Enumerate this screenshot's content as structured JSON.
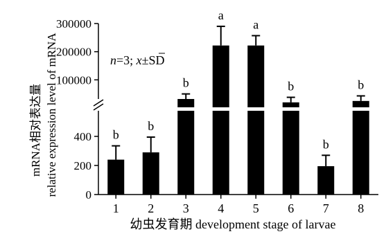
{
  "chart_data": {
    "type": "bar",
    "categories": [
      "1",
      "2",
      "3",
      "4",
      "5",
      "6",
      "7",
      "8"
    ],
    "values": [
      240,
      290,
      32000,
      222000,
      222000,
      20000,
      195,
      25000
    ],
    "errors": [
      95,
      105,
      18000,
      68000,
      35000,
      18000,
      75,
      18000
    ],
    "significance": [
      "b",
      "b",
      "b",
      "a",
      "a",
      "b",
      "b",
      "b"
    ],
    "xlabel": "幼虫发育期 development stage of  larvae",
    "ylabel_line1": "mRNA相对表达量",
    "ylabel_line2": "relative expression level of mRNA",
    "annotation": "n=3; x̄±SD",
    "annotation_n": "n",
    "annotation_rest": "=3; ",
    "annotation_x": "x",
    "annotation_sd": "±SD",
    "axis_break": true,
    "ylim_lower": [
      0,
      560
    ],
    "yticks_lower": [
      0,
      200,
      400
    ],
    "ytick_labels_lower": [
      "0",
      "200",
      "400"
    ],
    "ylim_upper": [
      0,
      300000
    ],
    "yticks_upper": [
      100000,
      200000,
      300000
    ],
    "ytick_labels_upper": [
      "100000",
      "200000",
      "300000"
    ],
    "bar_color": "#000000",
    "grid": false,
    "legend": "none"
  }
}
